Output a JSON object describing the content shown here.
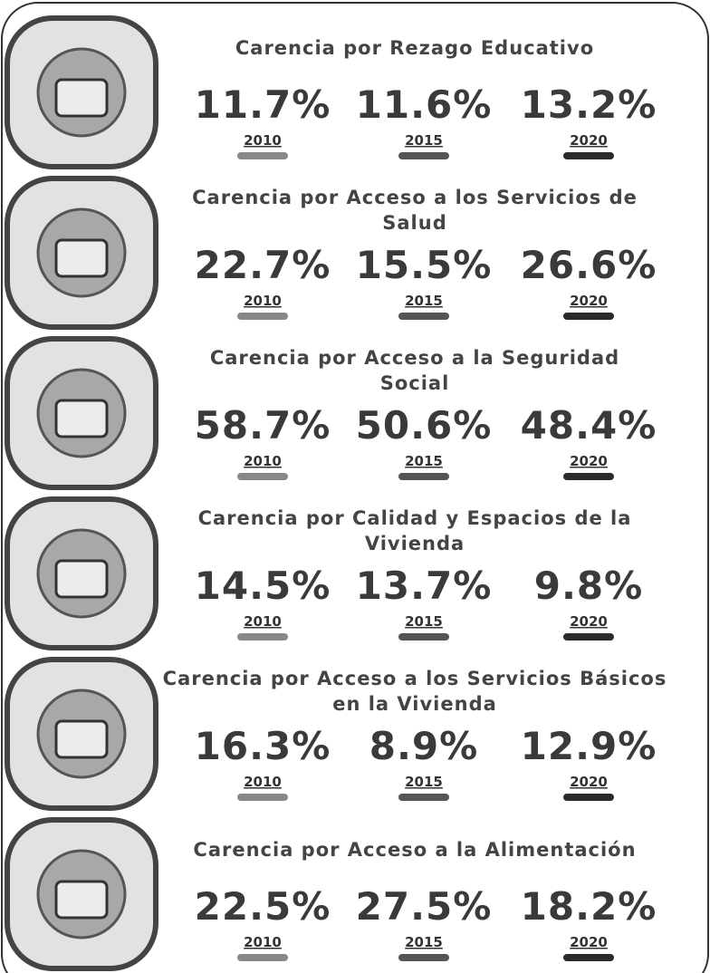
{
  "sections": [
    {
      "title_lines": [
        "Carencia por Rezago Educativo"
      ],
      "items": [
        {
          "value": "11.7%",
          "year": "2010"
        },
        {
          "value": "11.6%",
          "year": "2015"
        },
        {
          "value": "13.2%",
          "year": "2020"
        }
      ]
    },
    {
      "title_lines": [
        "Carencia por Acceso a los Servicios de",
        "Salud"
      ],
      "items": [
        {
          "value": "22.7%",
          "year": "2010"
        },
        {
          "value": "15.5%",
          "year": "2015"
        },
        {
          "value": "26.6%",
          "year": "2020"
        }
      ]
    },
    {
      "title_lines": [
        "Carencia por Acceso a la Seguridad",
        "Social"
      ],
      "items": [
        {
          "value": "58.7%",
          "year": "2010"
        },
        {
          "value": "50.6%",
          "year": "2015"
        },
        {
          "value": "48.4%",
          "year": "2020"
        }
      ]
    },
    {
      "title_lines": [
        "Carencia por Calidad y Espacios de la",
        "Vivienda"
      ],
      "items": [
        {
          "value": "14.5%",
          "year": "2010"
        },
        {
          "value": "13.7%",
          "year": "2015"
        },
        {
          "value": "9.8%",
          "year": "2020"
        }
      ]
    },
    {
      "title_lines": [
        "Carencia por Acceso a los Servicios Básicos",
        "en la Vivienda"
      ],
      "items": [
        {
          "value": "16.3%",
          "year": "2010"
        },
        {
          "value": "8.9%",
          "year": "2015"
        },
        {
          "value": "12.9%",
          "year": "2020"
        }
      ]
    },
    {
      "title_lines": [
        "Carencia por Acceso a la Alimentación"
      ],
      "items": [
        {
          "value": "22.5%",
          "year": "2010"
        },
        {
          "value": "27.5%",
          "year": "2015"
        },
        {
          "value": "18.2%",
          "year": "2020"
        }
      ]
    }
  ]
}
